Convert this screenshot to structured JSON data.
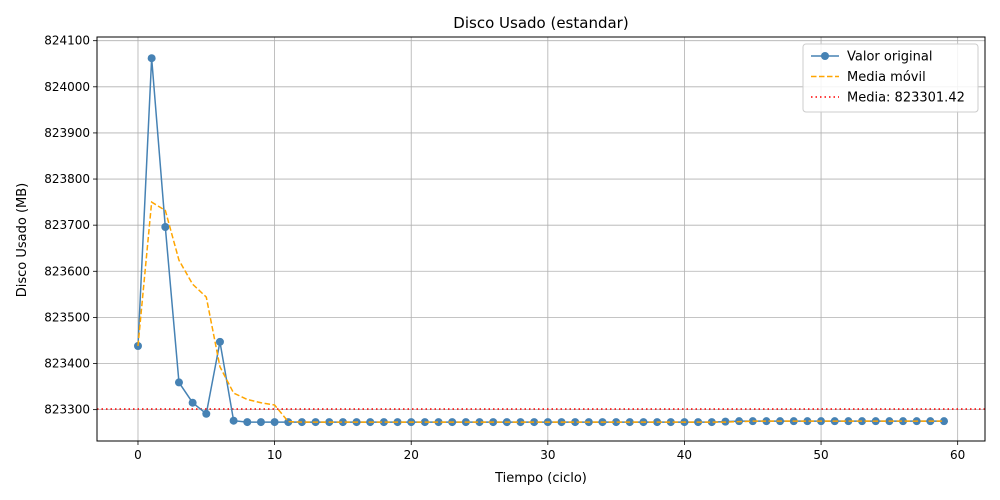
{
  "chart_data": {
    "type": "line",
    "title": "Disco Usado (estandar)",
    "xlabel": "Tiempo (ciclo)",
    "ylabel": "Disco Usado (MB)",
    "xlim": [
      -3,
      62
    ],
    "ylim": [
      823232,
      824108
    ],
    "xticks": [
      0,
      10,
      20,
      30,
      40,
      50,
      60
    ],
    "yticks": [
      823300,
      823400,
      823500,
      823600,
      823700,
      823800,
      823900,
      824000,
      824100
    ],
    "grid": true,
    "legend_position": "top-right",
    "series": [
      {
        "name": "Valor original",
        "color": "#4682b4",
        "style": "solid-marker",
        "x": [
          0,
          1,
          2,
          3,
          4,
          5,
          6,
          7,
          8,
          9,
          10,
          11,
          12,
          13,
          14,
          15,
          16,
          17,
          18,
          19,
          20,
          21,
          22,
          23,
          24,
          25,
          26,
          27,
          28,
          29,
          30,
          31,
          32,
          33,
          34,
          35,
          36,
          37,
          38,
          39,
          40,
          41,
          42,
          43,
          44,
          45,
          46,
          47,
          48,
          49,
          50,
          51,
          52,
          53,
          54,
          55,
          56,
          57,
          58,
          59
        ],
        "values": [
          823438,
          824062,
          823696,
          823359,
          823315,
          823291,
          823447,
          823276,
          823273,
          823273,
          823273,
          823273,
          823273,
          823273,
          823273,
          823273,
          823273,
          823273,
          823273,
          823273,
          823273,
          823273,
          823273,
          823273,
          823273,
          823273,
          823273,
          823273,
          823273,
          823273,
          823273,
          823273,
          823273,
          823273,
          823273,
          823273,
          823273,
          823273,
          823273,
          823273,
          823273,
          823273,
          823273,
          823274,
          823275,
          823275,
          823275,
          823275,
          823275,
          823275,
          823275,
          823275,
          823275,
          823275,
          823275,
          823275,
          823275,
          823275,
          823275,
          823275
        ]
      },
      {
        "name": "Media móvil",
        "color": "#ffa500",
        "style": "dashed",
        "x": [
          0,
          1,
          2,
          3,
          4,
          5,
          6,
          7,
          8,
          9,
          10,
          11,
          12,
          13,
          14,
          15,
          16,
          17,
          18,
          19,
          20,
          21,
          22,
          23,
          24,
          25,
          26,
          27,
          28,
          29,
          30,
          31,
          32,
          33,
          34,
          35,
          36,
          37,
          38,
          39,
          40,
          41,
          42,
          43,
          44,
          45,
          46,
          47,
          48,
          49,
          50,
          51,
          52,
          53,
          54,
          55,
          56,
          57,
          58,
          59
        ],
        "values": [
          823438,
          823750,
          823732,
          823624,
          823572,
          823544,
          823393,
          823336,
          823322,
          823315,
          823310,
          823274,
          823273,
          823273,
          823273,
          823273,
          823273,
          823273,
          823273,
          823273,
          823273,
          823273,
          823273,
          823273,
          823273,
          823273,
          823273,
          823273,
          823273,
          823273,
          823273,
          823273,
          823273,
          823273,
          823273,
          823273,
          823273,
          823273,
          823273,
          823273,
          823273,
          823273,
          823273,
          823273,
          823274,
          823275,
          823275,
          823275,
          823275,
          823275,
          823275,
          823275,
          823275,
          823275,
          823275,
          823275,
          823275,
          823275,
          823275,
          823275
        ]
      }
    ],
    "hline": {
      "name": "Media: 823301.42",
      "value": 823301.42,
      "color": "#ff0000",
      "style": "dotted"
    }
  }
}
